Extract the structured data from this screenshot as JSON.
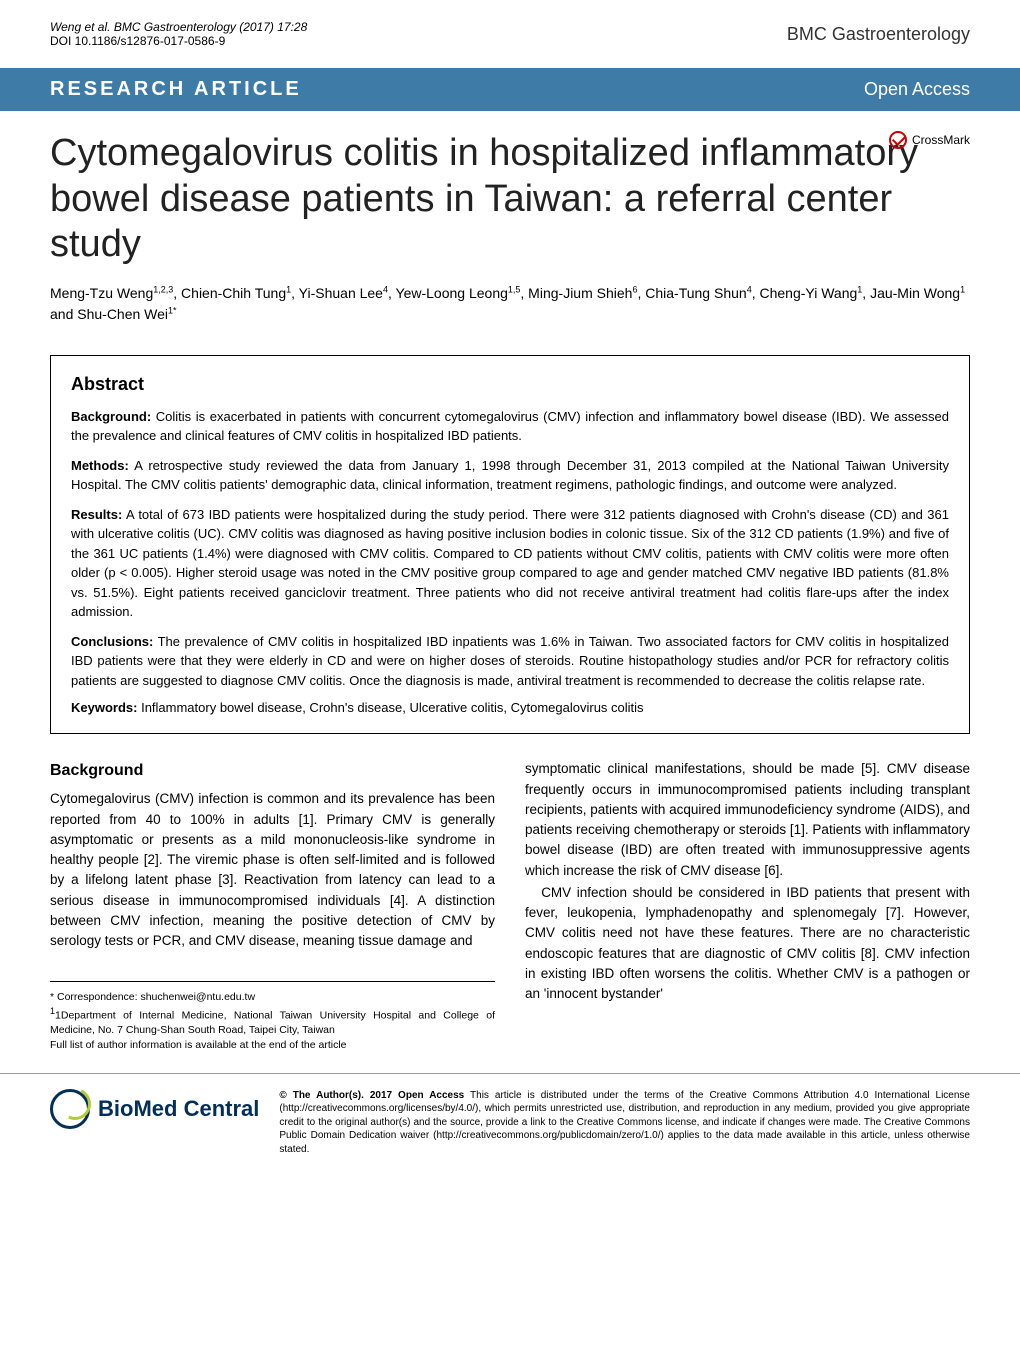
{
  "header": {
    "citation": "Weng et al. BMC Gastroenterology (2017) 17:28",
    "doi": "DOI 10.1186/s12876-017-0586-9",
    "journal": "BMC Gastroenterology"
  },
  "banner": {
    "left": "RESEARCH ARTICLE",
    "right": "Open Access"
  },
  "title": "Cytomegalovirus colitis in hospitalized inflammatory bowel disease patients in Taiwan: a referral center study",
  "crossmark_label": "CrossMark",
  "authors_html": "Meng-Tzu Weng<sup>1,2,3</sup>, Chien-Chih Tung<sup>1</sup>, Yi-Shuan Lee<sup>4</sup>, Yew-Loong Leong<sup>1,5</sup>, Ming-Jium Shieh<sup>6</sup>, Chia-Tung Shun<sup>4</sup>, Cheng-Yi Wang<sup>1</sup>, Jau-Min Wong<sup>1</sup> and Shu-Chen Wei<sup>1*</sup>",
  "abstract": {
    "heading": "Abstract",
    "background_label": "Background:",
    "background": " Colitis is exacerbated in patients with concurrent cytomegalovirus (CMV) infection and inflammatory bowel disease (IBD). We assessed the prevalence and clinical features of CMV colitis in hospitalized IBD patients.",
    "methods_label": "Methods:",
    "methods": " A retrospective study reviewed the data from January 1, 1998 through December 31, 2013 compiled at the National Taiwan University Hospital. The CMV colitis patients' demographic data, clinical information, treatment regimens, pathologic findings, and outcome were analyzed.",
    "results_label": "Results:",
    "results": " A total of 673 IBD patients were hospitalized during the study period. There were 312 patients diagnosed with Crohn's disease (CD) and 361 with ulcerative colitis (UC). CMV colitis was diagnosed as having positive inclusion bodies in colonic tissue. Six of the 312 CD patients (1.9%) and five of the 361 UC patients (1.4%) were diagnosed with CMV colitis. Compared to CD patients without CMV colitis, patients with CMV colitis were more often older (p < 0.005). Higher steroid usage was noted in the CMV positive group compared to age and gender matched CMV negative IBD patients (81.8% vs. 51.5%). Eight patients received ganciclovir treatment. Three patients who did not receive antiviral treatment had colitis flare-ups after the index admission.",
    "conclusions_label": "Conclusions:",
    "conclusions": " The prevalence of CMV colitis in hospitalized IBD inpatients was 1.6% in Taiwan. Two associated factors for CMV colitis in hospitalized IBD patients were that they were elderly in CD and were on higher doses of steroids. Routine histopathology studies and/or PCR for refractory colitis patients are suggested to diagnose CMV colitis. Once the diagnosis is made, antiviral treatment is recommended to decrease the colitis relapse rate.",
    "keywords_label": "Keywords:",
    "keywords": " Inflammatory bowel disease, Crohn's disease, Ulcerative colitis, Cytomegalovirus colitis"
  },
  "body": {
    "background_heading": "Background",
    "col1": "Cytomegalovirus (CMV) infection is common and its prevalence has been reported from 40 to 100% in adults [1]. Primary CMV is generally asymptomatic or presents as a mild mononucleosis-like syndrome in healthy people [2]. The viremic phase is often self-limited and is followed by a lifelong latent phase [3]. Reactivation from latency can lead to a serious disease in immunocompromised individuals [4]. A distinction between CMV infection, meaning the positive detection of CMV by serology tests or PCR, and CMV disease, meaning tissue damage and",
    "col2_p1": "symptomatic clinical manifestations, should be made [5]. CMV disease frequently occurs in immunocompromised patients including transplant recipients, patients with acquired immunodeficiency syndrome (AIDS), and patients receiving chemotherapy or steroids [1]. Patients with inflammatory bowel disease (IBD) are often treated with immunosuppressive agents which increase the risk of CMV disease [6].",
    "col2_p2": "CMV infection should be considered in IBD patients that present with fever, leukopenia, lymphadenopathy and splenomegaly [7]. However, CMV colitis need not have these features. There are no characteristic endoscopic features that are diagnostic of CMV colitis [8]. CMV infection in existing IBD often worsens the colitis. Whether CMV is a pathogen or an 'innocent bystander'"
  },
  "footnotes": {
    "correspondence": "* Correspondence: shuchenwei@ntu.edu.tw",
    "affiliation": "1Department of Internal Medicine, National Taiwan University Hospital and College of Medicine, No. 7 Chung-Shan South Road, Taipei City, Taiwan",
    "author_info": "Full list of author information is available at the end of the article"
  },
  "footer": {
    "biomed": "BioMed Central",
    "license_label": "© The Author(s). 2017 Open Access",
    "license": " This article is distributed under the terms of the Creative Commons Attribution 4.0 International License (http://creativecommons.org/licenses/by/4.0/), which permits unrestricted use, distribution, and reproduction in any medium, provided you give appropriate credit to the original author(s) and the source, provide a link to the Creative Commons license, and indicate if changes were made. The Creative Commons Public Domain Dedication waiver (http://creativecommons.org/publicdomain/zero/1.0/) applies to the data made available in this article, unless otherwise stated."
  },
  "colors": {
    "banner_bg": "#3E7BA7",
    "banner_text": "#ffffff",
    "crossmark_red": "#c00000",
    "biomed_navy": "#012e5b",
    "biomed_green": "#b4cc33"
  }
}
